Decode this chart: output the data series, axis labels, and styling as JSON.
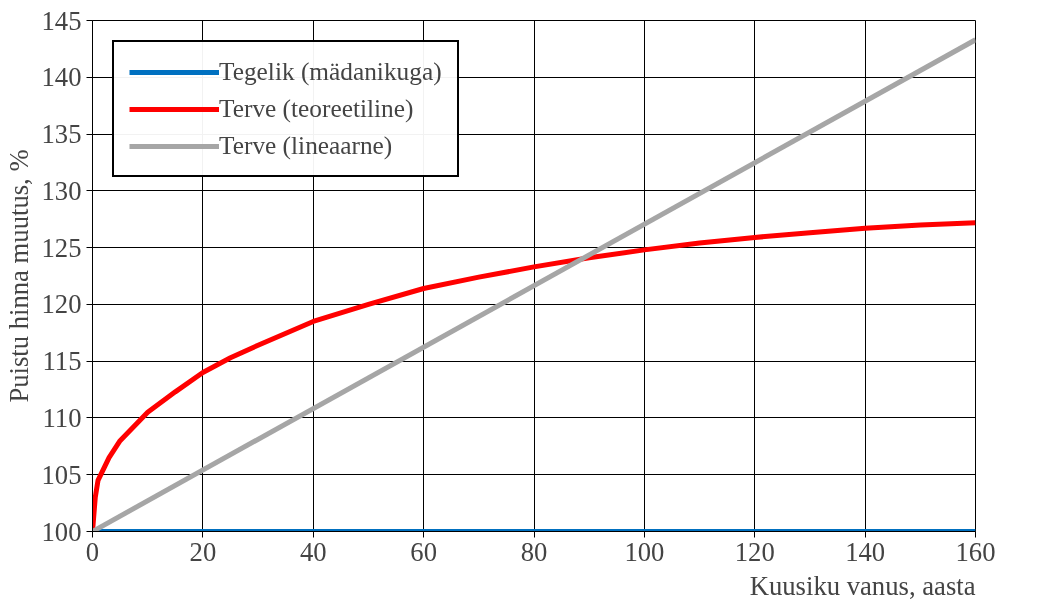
{
  "chart_data": {
    "type": "line",
    "xlabel": "Kuusiku vanus, aasta",
    "ylabel": "Puistu hinna muutus, %",
    "xlim": [
      0,
      160
    ],
    "ylim": [
      100,
      145
    ],
    "xticks": [
      0,
      20,
      40,
      60,
      80,
      100,
      120,
      140,
      160
    ],
    "yticks": [
      100,
      105,
      110,
      115,
      120,
      125,
      130,
      135,
      140,
      145
    ],
    "grid": true,
    "legend": "top left",
    "line_style": "solid",
    "marker": "none",
    "series": [
      {
        "name": "Tegelik (mädanikuga)",
        "color": "#0070c0",
        "x": [
          0,
          160
        ],
        "values": [
          100,
          100
        ]
      },
      {
        "name": "Terve (teoreetiline)",
        "color": "#ff0000",
        "x": [
          0,
          0.5,
          1,
          3,
          5,
          10,
          15,
          20,
          25,
          30,
          40,
          50,
          60,
          70,
          80,
          90,
          100,
          110,
          120,
          130,
          140,
          150,
          160
        ],
        "values": [
          100,
          103,
          104.5,
          106.5,
          108,
          110.5,
          112.3,
          114,
          115.3,
          116.4,
          118.5,
          120,
          121.4,
          122.4,
          123.3,
          124.1,
          124.8,
          125.4,
          125.9,
          126.3,
          126.7,
          127,
          127.2
        ]
      },
      {
        "name": "Terve (lineaarne)",
        "color": "#a6a6a6",
        "x": [
          0,
          160
        ],
        "values": [
          100,
          143.3
        ]
      }
    ]
  }
}
